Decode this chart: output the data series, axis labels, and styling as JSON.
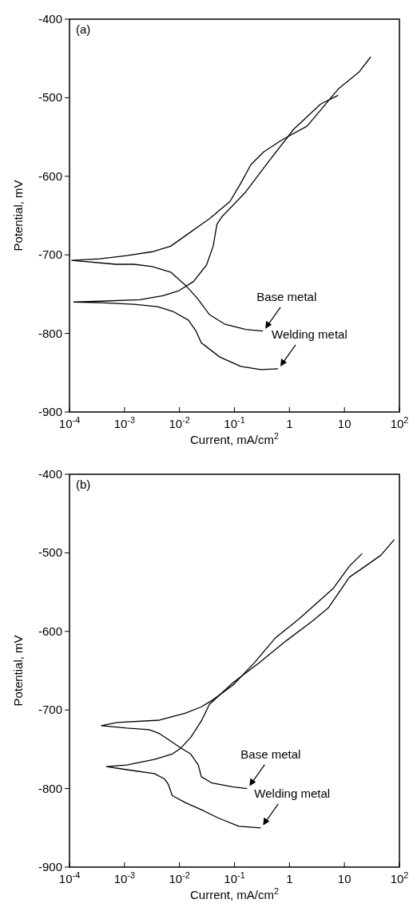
{
  "chart_data": [
    {
      "type": "line",
      "title": "(a)",
      "xlabel": "Current, mA/cm$^{2}$",
      "ylabel": "Potential, mV",
      "log": "x",
      "xlim": [
        0.0001,
        100
      ],
      "xticks": [
        {
          "value": 0.0001,
          "label": "10$^{-4}$"
        },
        {
          "value": 0.001,
          "label": "10$^{-3}$"
        },
        {
          "value": 0.01,
          "label": "10$^{-2}$"
        },
        {
          "value": 0.1,
          "label": "10$^{-1}$"
        },
        {
          "value": 1,
          "label": "1"
        },
        {
          "value": 10,
          "label": "10"
        },
        {
          "value": 100,
          "label": "10$^{2}$"
        }
      ],
      "ylim": [
        -900,
        -400
      ],
      "yticks": [
        -900,
        -800,
        -700,
        -600,
        -500,
        -400
      ],
      "series": [
        {
          "name": "Base metal",
          "color": "#000000",
          "x": [
            0.33,
            0.16,
            0.066,
            0.035,
            0.021,
            0.013,
            0.0069,
            0.0032,
            0.0015,
            0.0007,
            0.00011,
            0.00036,
            0.0011,
            0.0032,
            0.0069,
            0.0145,
            0.035,
            0.083,
            0.13,
            0.2,
            0.34,
            0.72,
            2.1,
            7.7,
            18.6,
            30
          ],
          "values": [
            -797,
            -795,
            -788,
            -776,
            -755,
            -739,
            -722,
            -715,
            -712,
            -712,
            -707,
            -705,
            -701,
            -696,
            -689,
            -673,
            -654,
            -632,
            -609,
            -585,
            -569,
            -554,
            -536,
            -489,
            -467,
            -448
          ]
        },
        {
          "name": "Welding metal",
          "color": "#000000",
          "x": [
            0.62,
            0.3,
            0.13,
            0.054,
            0.025,
            0.02,
            0.0145,
            0.0076,
            0.004,
            0.0015,
            0.00037,
            0.00012,
            0.00037,
            0.0019,
            0.005,
            0.0095,
            0.018,
            0.031,
            0.041,
            0.048,
            0.06,
            0.16,
            0.42,
            1.2,
            3.7,
            7.7
          ],
          "values": [
            -845,
            -846,
            -842,
            -830,
            -812,
            -797,
            -783,
            -772,
            -766,
            -763,
            -761,
            -760,
            -759,
            -757,
            -752,
            -746,
            -734,
            -713,
            -689,
            -661,
            -651,
            -620,
            -581,
            -540,
            -508,
            -497
          ]
        }
      ]
    },
    {
      "type": "line",
      "title": "(b)",
      "xlabel": "Current, mA/cm$^{2}$",
      "ylabel": "Potential, mV",
      "log": "x",
      "xlim": [
        0.0001,
        100
      ],
      "xticks": [
        {
          "value": 0.0001,
          "label": "10$^{-4}$"
        },
        {
          "value": 0.001,
          "label": "10$^{-3}$"
        },
        {
          "value": 0.01,
          "label": "10$^{-2}$"
        },
        {
          "value": 0.1,
          "label": "10$^{-1}$"
        },
        {
          "value": 1,
          "label": "1"
        },
        {
          "value": 10,
          "label": "10"
        },
        {
          "value": 100,
          "label": "10$^{2}$"
        }
      ],
      "ylim": [
        -900,
        -400
      ],
      "yticks": [
        -900,
        -800,
        -700,
        -600,
        -500,
        -400
      ],
      "series": [
        {
          "name": "Base metal",
          "color": "#000000",
          "x": [
            0.17,
            0.095,
            0.039,
            0.025,
            0.022,
            0.016,
            0.0104,
            0.0067,
            0.0043,
            0.0028,
            0.0011,
            0.00038,
            0.00073,
            0.0043,
            0.0129,
            0.025,
            0.039,
            0.095,
            0.23,
            0.56,
            1.5,
            6.3,
            12.3,
            21
          ],
          "values": [
            -800,
            -798,
            -793,
            -785,
            -770,
            -756,
            -748,
            -739,
            -730,
            -725,
            -723,
            -720,
            -716,
            -713,
            -704,
            -696,
            -688,
            -668,
            -640,
            -608,
            -584,
            -545,
            -517,
            -501
          ]
        },
        {
          "name": "Welding metal",
          "color": "#000000",
          "x": [
            0.3,
            0.12,
            0.049,
            0.025,
            0.0129,
            0.0074,
            0.0063,
            0.0054,
            0.0035,
            0.0011,
            0.00047,
            0.0011,
            0.0035,
            0.0074,
            0.0104,
            0.016,
            0.025,
            0.035,
            0.095,
            0.28,
            0.87,
            2.6,
            5.1,
            12.3,
            24,
            46,
            81
          ],
          "values": [
            -850,
            -848,
            -837,
            -827,
            -818,
            -809,
            -795,
            -788,
            -781,
            -776,
            -772,
            -770,
            -763,
            -756,
            -749,
            -735,
            -714,
            -693,
            -665,
            -640,
            -612,
            -587,
            -570,
            -531,
            -517,
            -503,
            -483
          ]
        }
      ]
    }
  ]
}
